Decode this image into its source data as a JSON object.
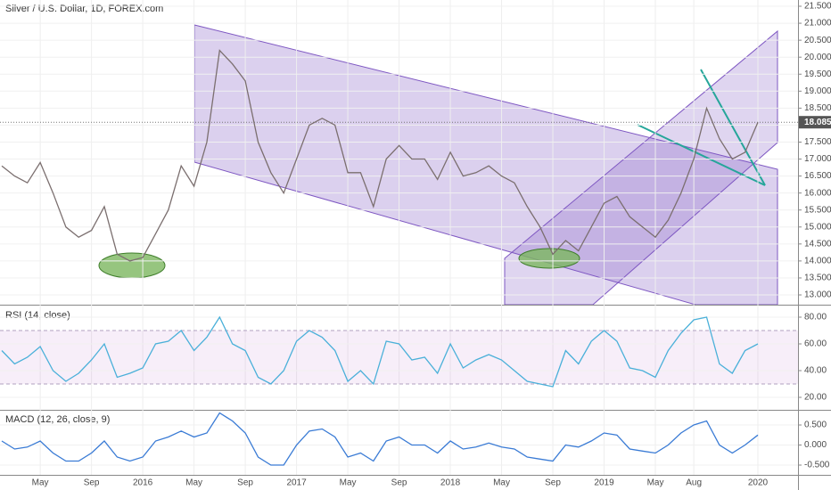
{
  "chart_data": [
    {
      "type": "line",
      "title": "Silver / U.S. Dollar, 1D, FOREX.com",
      "color": "#7b6f6f",
      "values": [
        16.8,
        16.5,
        16.3,
        16.9,
        16.0,
        15.0,
        14.7,
        14.9,
        15.6,
        14.2,
        14.0,
        14.1,
        14.8,
        15.5,
        16.8,
        16.2,
        17.5,
        20.2,
        19.8,
        19.3,
        17.5,
        16.6,
        16.0,
        17.0,
        18.0,
        18.2,
        18.0,
        16.6,
        16.6,
        15.6,
        17.0,
        17.4,
        17.0,
        17.0,
        16.4,
        17.2,
        16.5,
        16.6,
        16.8,
        16.5,
        16.3,
        15.6,
        15.0,
        14.2,
        14.6,
        14.3,
        15.0,
        15.7,
        15.9,
        15.3,
        15.0,
        14.7,
        15.2,
        16.0,
        17.0,
        18.5,
        17.6,
        17.0,
        17.2,
        18.085
      ],
      "last_price": 18.085,
      "ylim": [
        12.712,
        21.684
      ],
      "yticks": [
        {
          "value": 13,
          "label": "13.000"
        },
        {
          "value": 13.5,
          "label": "13.500"
        },
        {
          "value": 14,
          "label": "14.000"
        },
        {
          "value": 14.5,
          "label": "14.500"
        },
        {
          "value": 15,
          "label": "15.000"
        },
        {
          "value": 15.5,
          "label": "15.500"
        },
        {
          "value": 16,
          "label": "16.000"
        },
        {
          "value": 16.5,
          "label": "16.500"
        },
        {
          "value": 17,
          "label": "17.000"
        },
        {
          "value": 17.5,
          "label": "17.500"
        },
        {
          "value": 18,
          "label": "18.000"
        },
        {
          "value": 18.5,
          "label": "18.500"
        },
        {
          "value": 19,
          "label": "19.000"
        },
        {
          "value": 19.5,
          "label": "19.500"
        },
        {
          "value": 20,
          "label": "20.000"
        },
        {
          "value": 20.5,
          "label": "20.500"
        },
        {
          "value": 21,
          "label": "21.000"
        },
        {
          "value": 21.5,
          "label": "21.500"
        }
      ]
    },
    {
      "type": "line",
      "title": "RSI (14, close)",
      "color": "#4ab0d9",
      "band": [
        30,
        70
      ],
      "values": [
        55,
        45,
        50,
        58,
        40,
        32,
        38,
        48,
        60,
        35,
        38,
        42,
        60,
        62,
        70,
        55,
        65,
        80,
        60,
        55,
        35,
        30,
        40,
        62,
        70,
        65,
        55,
        32,
        40,
        30,
        62,
        60,
        48,
        50,
        38,
        60,
        42,
        48,
        52,
        48,
        40,
        32,
        30,
        28,
        55,
        45,
        62,
        70,
        62,
        42,
        40,
        35,
        55,
        68,
        78,
        80,
        45,
        38,
        55,
        60
      ],
      "ylim": [
        10.67,
        88.67
      ],
      "yticks": [
        {
          "value": 20,
          "label": "20.00"
        },
        {
          "value": 40,
          "label": "40.00"
        },
        {
          "value": 60,
          "label": "60.00"
        },
        {
          "value": 80,
          "label": "80.00"
        }
      ]
    },
    {
      "type": "line",
      "title": "MACD (12, 26, close, 9)",
      "color": "#3a7bd5",
      "values": [
        0.1,
        -0.1,
        -0.05,
        0.1,
        -0.2,
        -0.4,
        -0.4,
        -0.2,
        0.1,
        -0.3,
        -0.4,
        -0.3,
        0.1,
        0.2,
        0.35,
        0.2,
        0.3,
        0.8,
        0.6,
        0.3,
        -0.3,
        -0.5,
        -0.5,
        0.0,
        0.35,
        0.4,
        0.2,
        -0.3,
        -0.2,
        -0.4,
        0.1,
        0.2,
        0.0,
        0.0,
        -0.2,
        0.1,
        -0.1,
        -0.05,
        0.05,
        -0.05,
        -0.1,
        -0.3,
        -0.35,
        -0.4,
        0.0,
        -0.05,
        0.1,
        0.3,
        0.25,
        -0.1,
        -0.15,
        -0.2,
        0.0,
        0.3,
        0.5,
        0.6,
        0.0,
        -0.2,
        0.0,
        0.25
      ],
      "ylim": [
        -0.744,
        0.856
      ],
      "yticks": [
        {
          "value": -0.5,
          "label": "-0.500"
        },
        {
          "value": 0,
          "label": "0.000"
        },
        {
          "value": 0.5,
          "label": "0.500"
        }
      ],
      "categories": [
        null,
        null,
        null,
        "May",
        null,
        null,
        null,
        "Sep",
        null,
        null,
        null,
        "2016",
        null,
        null,
        null,
        "May",
        null,
        null,
        null,
        "Sep",
        null,
        null,
        null,
        "2017",
        null,
        null,
        null,
        "May",
        null,
        null,
        null,
        "Sep",
        null,
        null,
        null,
        "2018",
        null,
        null,
        null,
        "May",
        null,
        null,
        null,
        "Sep",
        null,
        null,
        null,
        "2019",
        null,
        null,
        null,
        "May",
        null,
        null,
        "Aug",
        null,
        null,
        null,
        null,
        "2020"
      ]
    }
  ]
}
